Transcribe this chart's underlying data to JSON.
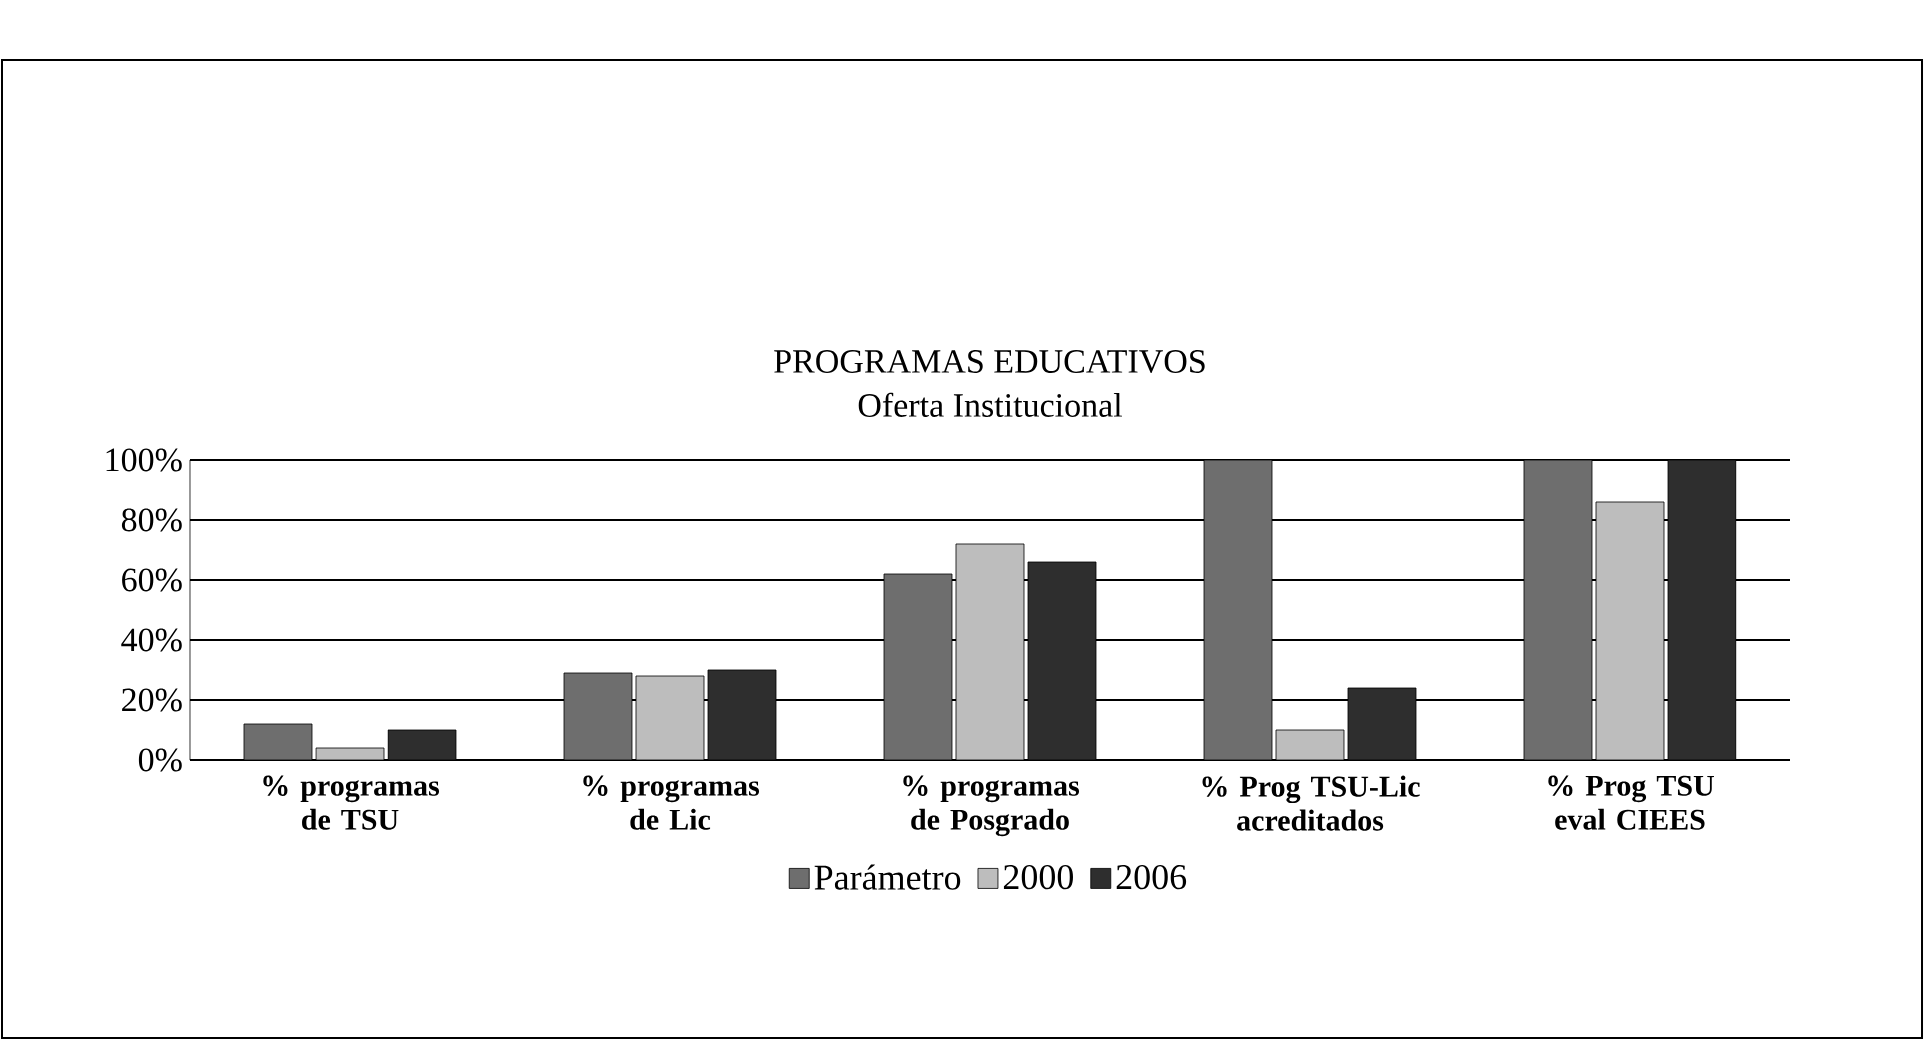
{
  "chart_data": {
    "type": "bar",
    "title": "PROGRAMAS EDUCATIVOS",
    "subtitle": "Oferta Institucional",
    "categories": [
      "% programas de TSU",
      "% programas de Lic",
      "% programas de Posgrado",
      "% Prog TSU-Lic acreditados",
      "% Prog TSU eval CIEES"
    ],
    "series": [
      {
        "name": "Parámetro",
        "color": "#6e6e6e",
        "values": [
          12,
          29,
          62,
          100,
          100
        ]
      },
      {
        "name": "2000",
        "color": "#bdbdbd",
        "values": [
          4,
          28,
          72,
          10,
          86
        ]
      },
      {
        "name": "2006",
        "color": "#2e2e2e",
        "values": [
          10,
          30,
          66,
          24,
          100
        ]
      }
    ],
    "ylim": [
      0,
      100
    ],
    "yticks": [
      {
        "value": 0,
        "label": "0%"
      },
      {
        "value": 20,
        "label": "20%"
      },
      {
        "value": 40,
        "label": "40%"
      },
      {
        "value": 60,
        "label": "60%"
      },
      {
        "value": 80,
        "label": "80%"
      },
      {
        "value": 100,
        "label": "100%"
      }
    ],
    "grid": "y",
    "legend": "bottom"
  }
}
